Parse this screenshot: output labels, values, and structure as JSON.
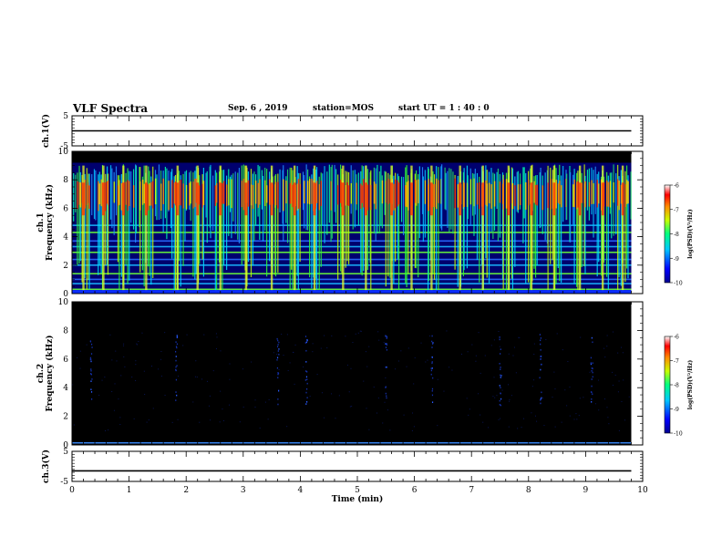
{
  "header": {
    "title": "VLF Spectra",
    "date": "Sep. 6 , 2019",
    "station": "station=MOS",
    "start": "start UT = 1 : 40 : 0"
  },
  "chart_data": [
    {
      "type": "line",
      "id": "ch1_volt",
      "ylabel": "ch.1(V)",
      "ylim": [
        -5,
        5
      ],
      "yticks": [
        5,
        -5
      ],
      "x": [
        0,
        9.8
      ],
      "y": [
        0,
        0
      ]
    },
    {
      "type": "heatmap",
      "id": "ch1_spec",
      "ylabel_line1": "ch.1",
      "ylabel_line2": "Frequency (kHz)",
      "ylim": [
        0,
        10
      ],
      "yticks": [
        0,
        2,
        4,
        6,
        8,
        10
      ],
      "xlim": [
        0,
        9.8
      ],
      "colorbar": {
        "label": "log(PSD)(V²/Hz)",
        "range": [
          -10,
          -6
        ],
        "ticks": [
          -6,
          -7,
          -8,
          -9,
          -10
        ]
      },
      "bursts_min": [
        0.2,
        0.55,
        0.9,
        1.3,
        1.85,
        2.2,
        2.6,
        3.05,
        3.5,
        3.9,
        4.25,
        4.75,
        5.15,
        5.6,
        5.95,
        6.3,
        6.8,
        7.2,
        7.65,
        8.05,
        8.45,
        8.9,
        9.3,
        9.65
      ],
      "line_freqs_khz": [
        0.3,
        0.7,
        1.0,
        1.4,
        2.0,
        2.4,
        2.9,
        3.3,
        3.7,
        4.3,
        4.8
      ]
    },
    {
      "type": "heatmap",
      "id": "ch2_spec",
      "ylabel_line1": "ch.2",
      "ylabel_line2": "Frequency (kHz)",
      "ylim": [
        0,
        10
      ],
      "yticks": [
        0,
        2,
        4,
        6,
        8,
        10
      ],
      "xlim": [
        0,
        9.8
      ],
      "colorbar": {
        "label": "log(PSD)(V²/Hz)",
        "range": [
          -10,
          -6
        ],
        "ticks": [
          -6,
          -7,
          -8,
          -9,
          -10
        ]
      },
      "faint_events_min": [
        0.33,
        1.82,
        3.6,
        4.1,
        5.5,
        6.3,
        7.5,
        8.2,
        9.1
      ]
    },
    {
      "type": "line",
      "id": "ch3_volt",
      "ylabel": "ch.3(V)",
      "ylim": [
        -5,
        5
      ],
      "yticks": [
        5,
        -5
      ],
      "x": [
        0,
        9.8
      ],
      "y": [
        -1.5,
        -1.5
      ]
    }
  ],
  "xaxis": {
    "label": "Time (min)",
    "xlim": [
      0,
      10
    ],
    "ticks": [
      0,
      1,
      2,
      3,
      4,
      5,
      6,
      7,
      8,
      9,
      10
    ]
  }
}
